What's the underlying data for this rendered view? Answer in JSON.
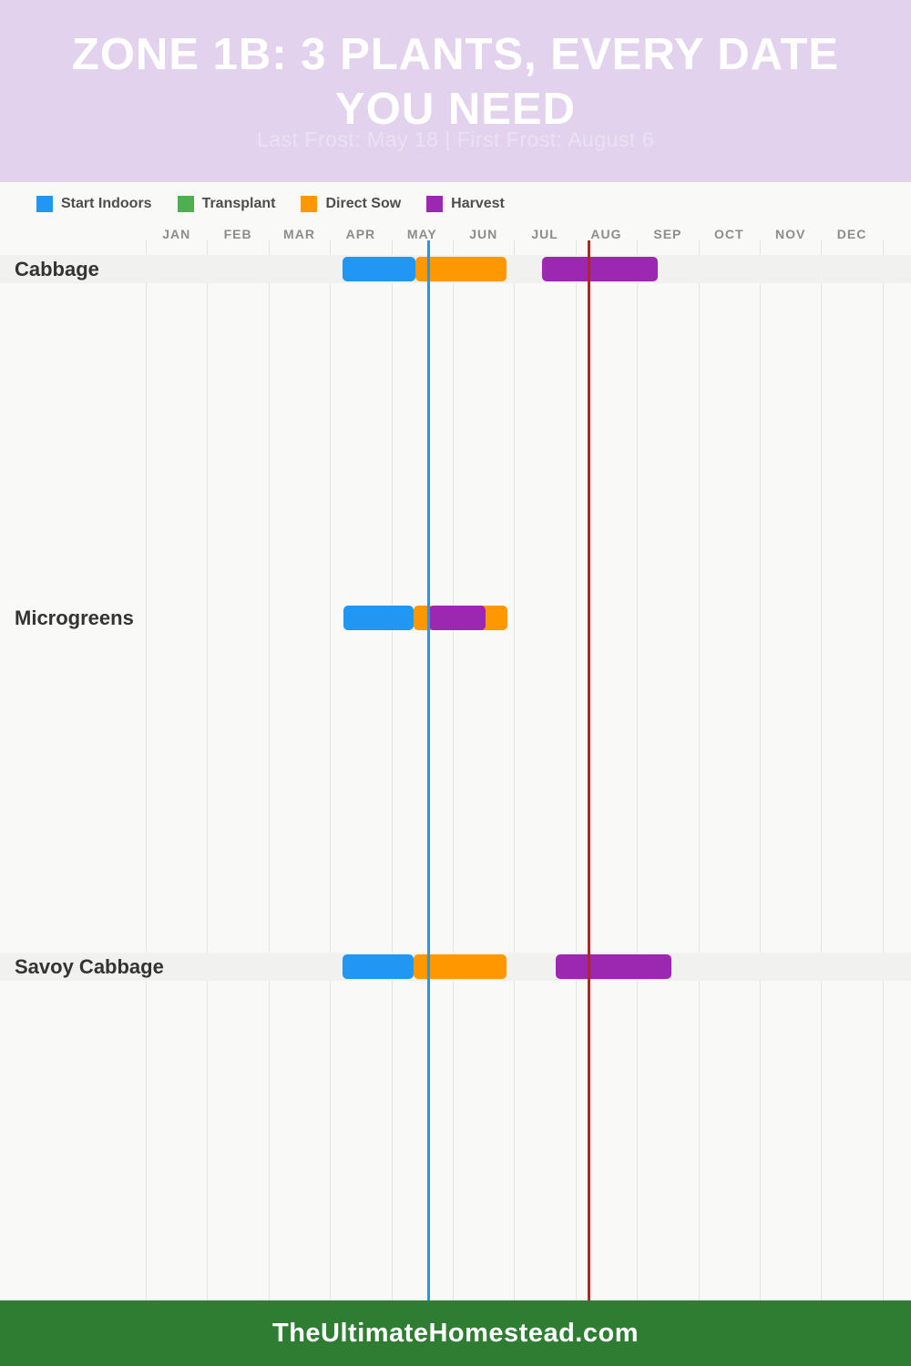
{
  "header": {
    "title_line1": "ZONE 1B: 3 PLANTS, EVERY DATE",
    "title_line2": "YOU NEED",
    "subtitle": "Last Frost: May 18 | First Frost: August 6"
  },
  "legend": {
    "items": [
      {
        "label": "Start Indoors",
        "color": "#2196f3"
      },
      {
        "label": "Transplant",
        "color": "#4caf50"
      },
      {
        "label": "Direct Sow",
        "color": "#ff9800"
      },
      {
        "label": "Harvest",
        "color": "#9c27b0"
      }
    ]
  },
  "chart_data": {
    "type": "gantt",
    "months": [
      "JAN",
      "FEB",
      "MAR",
      "APR",
      "MAY",
      "JUN",
      "JUL",
      "AUG",
      "SEP",
      "OCT",
      "NOV",
      "DEC"
    ],
    "frost_lines": [
      {
        "id": "last-frost",
        "label": "Last Frost: May 18",
        "month_position": 4.61,
        "color": "#2196f3"
      },
      {
        "id": "first-frost",
        "label": "First Frost: August 6",
        "month_position": 7.22,
        "color": "#b12622"
      }
    ],
    "rows": [
      {
        "plant": "Cabbage",
        "banded": true,
        "bars": [
          {
            "phase": "Start Indoors",
            "color": "#2196f3",
            "start_month": 3.2,
            "end_month": 4.39,
            "approx_dates": "Apr 7 - May 13"
          },
          {
            "phase": "Direct Sow",
            "color": "#ff9800",
            "start_month": 4.39,
            "end_month": 5.88,
            "approx_dates": "May 13 - Jun 27"
          },
          {
            "phase": "Harvest",
            "color": "#9c27b0",
            "start_month": 6.46,
            "end_month": 8.34,
            "approx_dates": "Jul 15 - Sep 11"
          }
        ]
      },
      {
        "plant": "Microgreens",
        "banded": false,
        "bars": [
          {
            "phase": "Start Indoors",
            "color": "#2196f3",
            "start_month": 3.22,
            "end_month": 4.36,
            "approx_dates": "Apr 7 - May 12"
          },
          {
            "phase": "Direct Sow",
            "color": "#ff9800",
            "start_month": 4.36,
            "end_month": 5.89,
            "approx_dates": "May 12 - Jun 27"
          },
          {
            "phase": "Harvest",
            "color": "#9c27b0",
            "start_month": 4.61,
            "end_month": 5.54,
            "approx_dates": "May 19 - Jun 17"
          }
        ]
      },
      {
        "plant": "Savoy Cabbage",
        "banded": true,
        "bars": [
          {
            "phase": "Start Indoors",
            "color": "#2196f3",
            "start_month": 3.21,
            "end_month": 4.36,
            "approx_dates": "Apr 7 - May 12"
          },
          {
            "phase": "Direct Sow",
            "color": "#ff9800",
            "start_month": 4.36,
            "end_month": 5.88,
            "approx_dates": "May 12 - Jun 27"
          },
          {
            "phase": "Harvest",
            "color": "#9c27b0",
            "start_month": 6.67,
            "end_month": 8.56,
            "approx_dates": "Jul 21 - Sep 17"
          }
        ]
      }
    ],
    "legend_position": "top-left",
    "grid": true
  },
  "footer": {
    "text": "TheUltimateHomestead.com"
  },
  "colors": {
    "header_background": "#e3d2ed",
    "page_background": "#f9f9f7",
    "row_band": "#f1f1ef",
    "gridline": "#e4e4e2",
    "start_indoors": "#2196f3",
    "transplant": "#4caf50",
    "direct_sow": "#ff9800",
    "harvest": "#9c27b0",
    "last_frost_line": "#2196f3",
    "first_frost_line": "#b12622",
    "footer_background": "#2f7d33"
  }
}
